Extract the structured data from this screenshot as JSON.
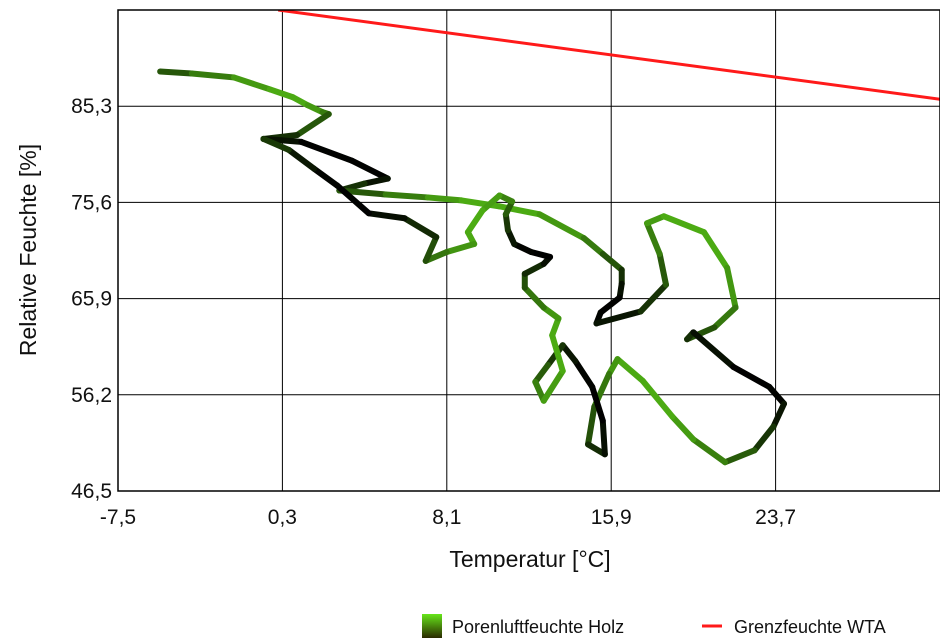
{
  "chart_data": {
    "type": "line",
    "title": "",
    "xlabel": "Temperatur [°C]",
    "ylabel": "Relative Feuchte [%]",
    "xlim": [
      -7.5,
      31.5
    ],
    "ylim": [
      46.5,
      95.0
    ],
    "x_ticks": [
      "-7,5",
      "0,3",
      "8,1",
      "15,9",
      "23,7"
    ],
    "x_tick_values": [
      -7.5,
      0.3,
      8.1,
      15.9,
      23.7
    ],
    "y_ticks": [
      "46,5",
      "56,2",
      "65,9",
      "75,6",
      "85,3"
    ],
    "y_tick_values": [
      46.5,
      56.2,
      65.9,
      75.6,
      85.3
    ],
    "grid": true,
    "legend_position": "bottom-right",
    "series": [
      {
        "name": "Porenluftfeuchte Holz",
        "color_start": "#000000",
        "color_end": "#66e61a",
        "x": [
          -5.5,
          -4.0,
          -2.0,
          -0.3,
          0.8,
          1.5,
          2.2,
          2.5,
          1.0,
          -0.6,
          1.2,
          3.6,
          5.3,
          4.2,
          3.0,
          5.2,
          7.2,
          8.8,
          10.6,
          12.5,
          14.6,
          15.5,
          16.4,
          16.4,
          16.3,
          15.4,
          15.2,
          17.3,
          18.5,
          18.2,
          17.6,
          18.4,
          20.3,
          21.4,
          21.8,
          20.8,
          19.5,
          19.8,
          21.7,
          23.4,
          24.1,
          23.6,
          22.7,
          21.3,
          19.8,
          18.8,
          17.4,
          16.2,
          15.8,
          15.1,
          14.8,
          15.6,
          15.5,
          15.0,
          14.2,
          13.6,
          12.9,
          12.3,
          12.7,
          13.6,
          13.1,
          13.4,
          12.7,
          11.8,
          11.8,
          12.7,
          13.0,
          12.1,
          11.3,
          11.0,
          10.9,
          11.2,
          10.6,
          9.8,
          9.1,
          9.4,
          8.1,
          7.1,
          7.6,
          6.1,
          4.4,
          2.9,
          1.8,
          0.6,
          -0.6
        ],
        "y": [
          88.8,
          88.6,
          88.2,
          87.0,
          86.2,
          85.4,
          84.7,
          84.5,
          82.4,
          82.0,
          81.7,
          79.8,
          78.0,
          77.5,
          76.8,
          76.4,
          76.1,
          75.8,
          75.2,
          74.4,
          72.0,
          70.4,
          68.8,
          67.4,
          66.0,
          64.5,
          63.4,
          64.6,
          67.3,
          70.4,
          73.5,
          74.2,
          72.6,
          69.0,
          65.0,
          63.0,
          61.8,
          62.5,
          59.0,
          57.0,
          55.3,
          53.0,
          50.6,
          49.4,
          51.7,
          54.0,
          57.6,
          59.8,
          58.3,
          55.0,
          51.2,
          50.2,
          53.6,
          57.0,
          59.6,
          61.2,
          59.2,
          57.5,
          55.6,
          58.6,
          62.2,
          63.9,
          65.0,
          67.0,
          68.4,
          69.4,
          70.1,
          70.6,
          71.4,
          72.8,
          74.4,
          75.7,
          76.3,
          74.8,
          72.6,
          71.4,
          70.6,
          69.7,
          72.1,
          74.0,
          74.5,
          77.3,
          79.0,
          80.9,
          82.0
        ]
      },
      {
        "name": "Grenzfeuchte WTA",
        "color": "#ff1a1a",
        "x": [
          0.1,
          31.5
        ],
        "y": [
          95.0,
          86.0
        ]
      }
    ]
  },
  "legend": [
    {
      "label": "Porenluftfeuchte Holz",
      "icon": "gradient-swatch-icon"
    },
    {
      "label": "Grenzfeuchte WTA",
      "icon": "red-line-icon"
    }
  ]
}
